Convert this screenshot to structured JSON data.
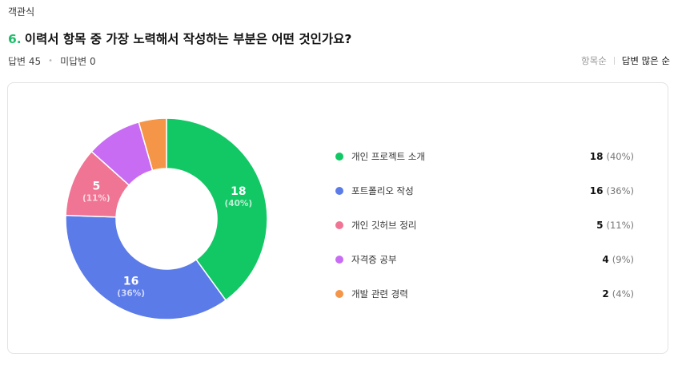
{
  "header": {
    "type_label": "객관식",
    "question_number": "6.",
    "question_text": "이력서 항목 중 가장 노력해서 작성하는 부분은 어떤 것인가요?",
    "answered": "답변 45",
    "unanswered": "미답변 0"
  },
  "sort": {
    "by_item": "항목순",
    "by_answers": "답변 많은 순"
  },
  "chart_data": {
    "type": "pie",
    "donut": true,
    "title": "",
    "total": 45,
    "categories": [
      "개인 프로젝트 소개",
      "포트폴리오 작성",
      "개인 깃허브 정리",
      "자격증 공부",
      "개발 관련 경력"
    ],
    "values": [
      18,
      16,
      5,
      4,
      2
    ],
    "percent_labels": [
      "(40%)",
      "(36%)",
      "(11%)",
      "(9%)",
      "(4%)"
    ],
    "colors": [
      "#12c864",
      "#5b7be9",
      "#f07493",
      "#c86cf4",
      "#f59547"
    ],
    "slice_labels_shown": [
      true,
      true,
      true,
      false,
      false
    ],
    "legend_position": "right"
  }
}
